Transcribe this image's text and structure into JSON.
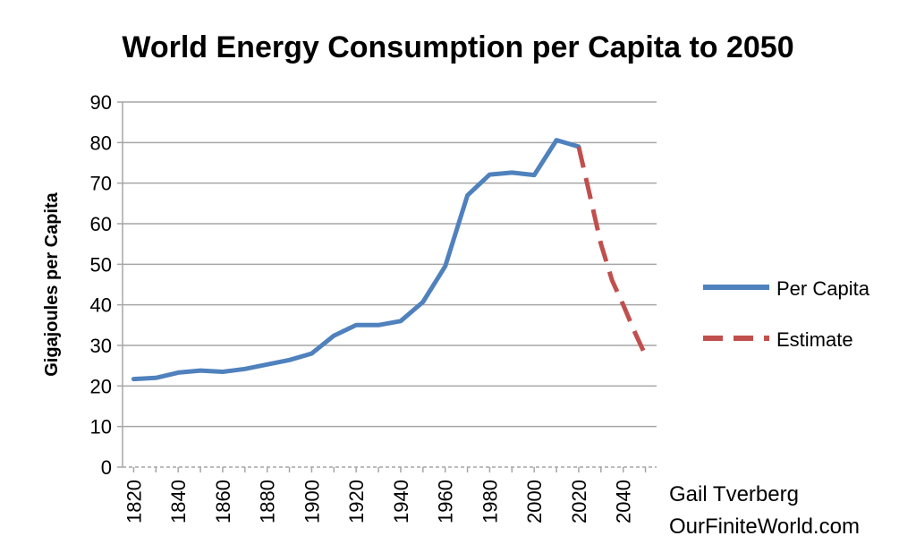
{
  "chart_data": {
    "type": "line",
    "title": "World Energy Consumption per Capita to 2050",
    "xlabel": "",
    "ylabel": "Gigajoules per Capita",
    "ylim": [
      0,
      90
    ],
    "xlim": [
      1815,
      2055
    ],
    "yticks": [
      "0",
      "10",
      "20",
      "30",
      "40",
      "50",
      "60",
      "70",
      "80",
      "90"
    ],
    "xticks": [
      "1820",
      "1840",
      "1860",
      "1880",
      "1900",
      "1920",
      "1940",
      "1960",
      "1980",
      "2000",
      "2020",
      "2040"
    ],
    "grid": true,
    "legend_position": "right",
    "series": [
      {
        "name": "Per Capita",
        "color": "#4f81bd",
        "style": "solid",
        "x": [
          1820,
          1830,
          1840,
          1850,
          1860,
          1870,
          1880,
          1890,
          1900,
          1910,
          1920,
          1930,
          1940,
          1950,
          1960,
          1970,
          1980,
          1990,
          2000,
          2010,
          2020
        ],
        "y": [
          21.7,
          22.0,
          23.3,
          23.8,
          23.5,
          24.2,
          25.3,
          26.4,
          28.0,
          32.4,
          35.0,
          35.0,
          36.0,
          40.7,
          49.5,
          67.0,
          72.1,
          72.6,
          72.0,
          80.6,
          79.0
        ]
      },
      {
        "name": "Estimate",
        "color": "#c0504d",
        "style": "dashed",
        "x": [
          2020,
          2025,
          2030,
          2035,
          2040,
          2045,
          2050
        ],
        "y": [
          79.0,
          67.0,
          55.0,
          46.0,
          40.0,
          33.5,
          27.5
        ]
      }
    ],
    "credit_lines": [
      "Gail Tverberg",
      "OurFiniteWorld.com"
    ]
  }
}
